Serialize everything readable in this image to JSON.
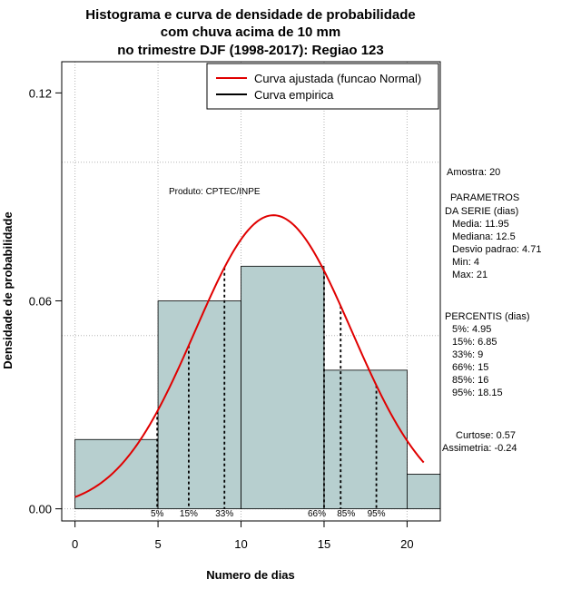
{
  "chart_data": {
    "type": "bar",
    "title_lines": [
      "Histograma e curva de densidade de probabilidade",
      "com chuva acima de 10 mm",
      "no trimestre DJF (1998-2017): Regiao 123"
    ],
    "xlabel": "Numero de dias",
    "ylabel": "Densidade de probabilidade",
    "xlim": [
      -0.8,
      22
    ],
    "ylim": [
      -0.0035,
      0.129
    ],
    "x_ticks": [
      0,
      5,
      10,
      15,
      20
    ],
    "y_ticks": [
      0.0,
      0.06,
      0.12
    ],
    "y_tick_labels": [
      "0.00",
      "0.06",
      "0.12"
    ],
    "grid_x": [
      0,
      5,
      10,
      15,
      20
    ],
    "grid_y": [
      0.0,
      0.05,
      0.1
    ],
    "bins": [
      {
        "x0": 0,
        "x1": 5,
        "density": 0.02
      },
      {
        "x0": 5,
        "x1": 10,
        "density": 0.06
      },
      {
        "x0": 10,
        "x1": 15,
        "density": 0.07
      },
      {
        "x0": 15,
        "x1": 20,
        "density": 0.04
      },
      {
        "x0": 20,
        "x1": 22,
        "density": 0.01
      }
    ],
    "normal_curve": {
      "mean": 11.95,
      "sd": 4.71,
      "x_from": 0,
      "x_to": 21
    },
    "percentile_lines": [
      {
        "label": "5%",
        "x": 4.95
      },
      {
        "label": "15%",
        "x": 6.85
      },
      {
        "label": "33%",
        "x": 9
      },
      {
        "label": "66%",
        "x": 15
      },
      {
        "label": "85%",
        "x": 16
      },
      {
        "label": "95%",
        "x": 18.15
      }
    ],
    "legend": {
      "position": "top-right",
      "entries": [
        {
          "label": "Curva ajustada (funcao Normal)",
          "color": "#e00000"
        },
        {
          "label": "Curva empirica",
          "color": "#000000"
        }
      ]
    },
    "product_note": "Produto: CPTEC/INPE",
    "colors": {
      "bar_fill": "#b7cfcf",
      "curve": "#e00000"
    }
  },
  "stats_panel": {
    "lines": [
      "Amostra: 20",
      "PARAMETROS",
      "DA SERIE (dias)",
      "Media: 11.95",
      "Mediana: 12.5",
      "Desvio padrao: 4.71",
      "Min: 4",
      "Max: 21",
      "PERCENTIS (dias)",
      "5%: 4.95",
      "15%: 6.85",
      "33%: 9",
      "66%: 15",
      "85%: 16",
      "95%: 18.15",
      "Curtose: 0.57",
      "Assimetria: -0.24"
    ]
  }
}
